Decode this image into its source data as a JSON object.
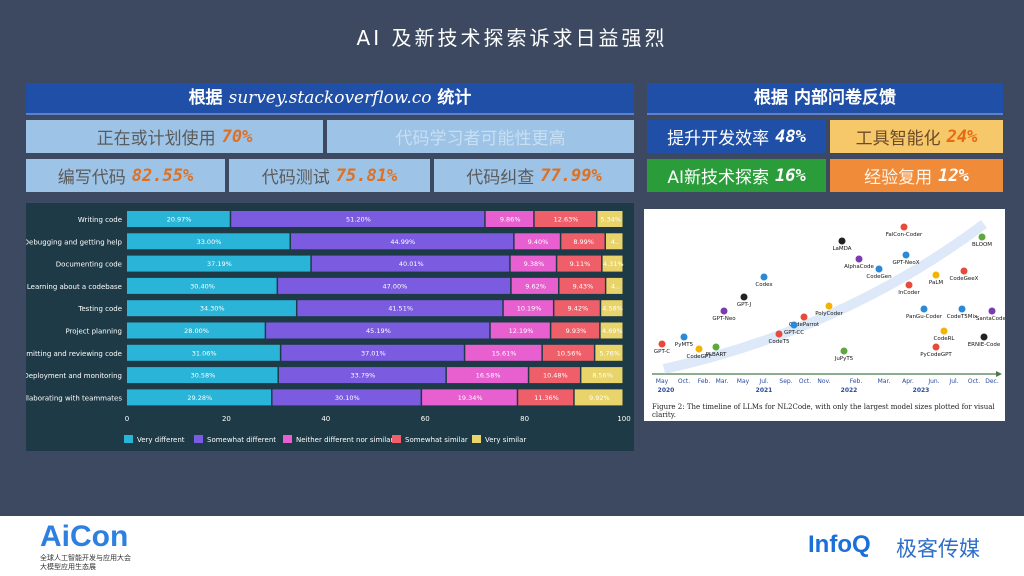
{
  "slide": {
    "title": "AI 及新技术探索诉求日益强烈"
  },
  "left_banner": {
    "prefix": "根据 ",
    "source": "survey.stackoverflow.co",
    "suffix": " 统计"
  },
  "right_banner": {
    "label": "根据 内部问卷反馈"
  },
  "left_stats": [
    {
      "label": "正在或计划使用",
      "value": "70%"
    },
    {
      "label": "代码学习者可能性更高",
      "value": ""
    },
    {
      "label": "编写代码",
      "value": "82.55%"
    },
    {
      "label": "代码测试",
      "value": "75.81%"
    },
    {
      "label": "代码纠查",
      "value": "77.99%"
    }
  ],
  "right_stats": [
    {
      "label": "提升开发效率",
      "value": "48%"
    },
    {
      "label": "工具智能化",
      "value": "24%"
    },
    {
      "label": "AI新技术探索",
      "value": "16%"
    },
    {
      "label": "经验复用",
      "value": "12%"
    }
  ],
  "colors": {
    "very_different": "#29b4d8",
    "somewhat_different": "#7b5ce0",
    "neither": "#e85fd0",
    "somewhat_similar": "#ef5f6a",
    "very_similar": "#e8d46a"
  },
  "chart_data": {
    "type": "bar",
    "orientation": "horizontal-stacked",
    "categories": [
      "Writing code",
      "Debugging and getting help",
      "Documenting code",
      "Learning about a codebase",
      "Testing code",
      "Project planning",
      "Committing and reviewing code",
      "Deployment and monitoring",
      "Collaborating with teammates"
    ],
    "series": [
      {
        "name": "Very different",
        "values": [
          20.97,
          33.0,
          37.19,
          30.4,
          34.3,
          28.0,
          31.06,
          30.58,
          29.28
        ]
      },
      {
        "name": "Somewhat different",
        "values": [
          51.2,
          44.99,
          40.01,
          47.0,
          41.51,
          45.19,
          37.01,
          33.79,
          30.1
        ]
      },
      {
        "name": "Neither different nor similar",
        "values": [
          9.86,
          9.4,
          9.38,
          9.62,
          10.19,
          12.19,
          15.61,
          16.58,
          19.34
        ]
      },
      {
        "name": "Somewhat similar",
        "values": [
          12.63,
          8.99,
          9.11,
          9.43,
          9.42,
          9.93,
          10.56,
          10.48,
          11.36
        ]
      },
      {
        "name": "Very similar",
        "values": [
          5.34,
          3.62,
          4.31,
          3.55,
          4.58,
          4.69,
          5.76,
          8.56,
          9.92
        ]
      }
    ],
    "xticks": [
      0,
      20,
      40,
      60,
      80,
      100
    ],
    "xlim": [
      0,
      100
    ],
    "legend": "bottom"
  },
  "timeline": {
    "caption": "Figure 2: The timeline of LLMs for NL2Code, with only the largest model sizes plotted for visual clarity.",
    "months": [
      "May",
      "Oct.",
      "Feb.",
      "Mar.",
      "May",
      "Jul.",
      "Sep.",
      "Oct.",
      "Nov.",
      "Feb.",
      "Mar.",
      "Apr.",
      "Jun.",
      "Jul.",
      "Oct.",
      "Dec."
    ],
    "years": [
      "2020",
      "2021",
      "2022",
      "2023"
    ],
    "models": [
      "GPT-C",
      "PyMT5",
      "CodeGPT",
      "PLBART",
      "GPT-Neo",
      "GPT-J",
      "Codex",
      "CodeT5",
      "CodeParrot",
      "GPT-CC",
      "PolyCoder",
      "JuPyT5",
      "AlphaCode",
      "LaMDA",
      "CodeGen",
      "CodeGeeX",
      "InCoder",
      "PanGu-Coder",
      "CodeRL",
      "BLOOM",
      "SantaCoder",
      "ERNIE-Code",
      "CodeT5Mix",
      "FalCon-Coder",
      "PyCodeGPT",
      "GPT-NeoX",
      "PaLM"
    ]
  },
  "footer": {
    "brand": "AiCon",
    "brand_sub_1": "全球人工智能开发与应用大会",
    "brand_sub_2": "大模型应用生态展",
    "partner": "InfoQ",
    "partner_cn": "极客传媒"
  }
}
